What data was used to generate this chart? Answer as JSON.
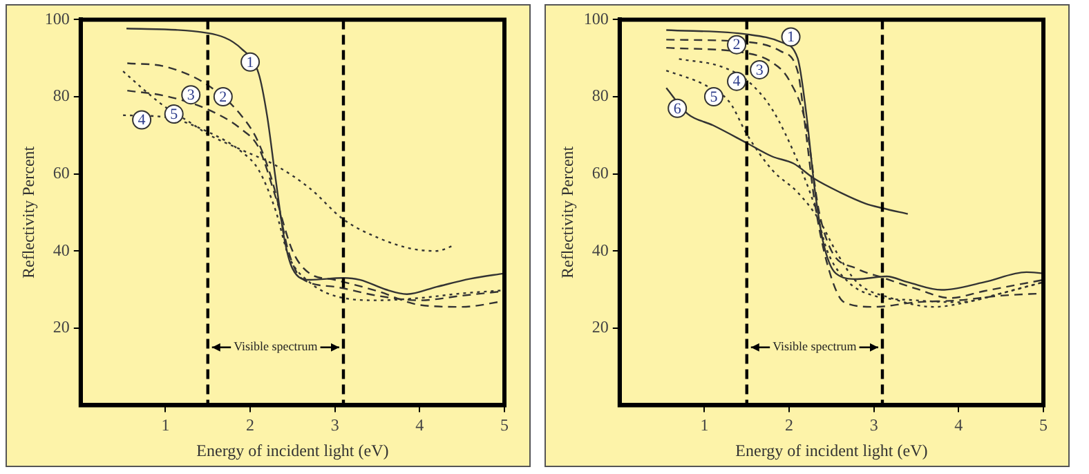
{
  "chart_data": [
    {
      "type": "line",
      "xlabel": "Energy of incident light (eV)",
      "ylabel": "Reflectivity Percent",
      "xlim": [
        0,
        5
      ],
      "ylim": [
        0,
        100
      ],
      "xticks": [
        1,
        2,
        3,
        4,
        5
      ],
      "yticks": [
        20,
        40,
        60,
        80,
        100
      ],
      "grid": false,
      "legend": false,
      "marker": "none",
      "ref_lines": [
        {
          "axis": "x",
          "value": 1.5,
          "color": "#000000",
          "line_style": "dashed"
        },
        {
          "axis": "x",
          "value": 3.1,
          "color": "#000000",
          "line_style": "dashed"
        }
      ],
      "annotations": [
        "Visible spectrum",
        {
          "text": "1",
          "x": 2.0,
          "y": 89
        },
        {
          "text": "2",
          "x": 1.68,
          "y": 80
        },
        {
          "text": "3",
          "x": 1.3,
          "y": 80.5
        },
        {
          "text": "5",
          "x": 1.1,
          "y": 75.5
        },
        {
          "text": "4",
          "x": 0.72,
          "y": 74
        }
      ],
      "series": [
        {
          "color": "#333333",
          "line_style": "solid",
          "x": [
            0.54,
            1.5,
            1.9,
            2.1,
            2.2,
            2.3,
            2.4,
            2.5,
            2.7,
            3.1,
            3.3,
            3.6,
            3.85,
            4.2,
            4.6,
            5
          ],
          "values": [
            97.7,
            96.5,
            92.4,
            86,
            75,
            58.7,
            43.5,
            35.4,
            32.5,
            33,
            32.5,
            30,
            28.8,
            30.7,
            32.8,
            34.2
          ]
        },
        {
          "color": "#333333",
          "line_style": "dashed",
          "x": [
            0.55,
            1,
            1.5,
            1.9,
            2.1,
            2.3,
            2.45,
            2.6,
            3,
            3.5,
            4,
            4.5,
            5
          ],
          "values": [
            88.7,
            87.8,
            83,
            75,
            68,
            55,
            40,
            33,
            30.7,
            28.4,
            27.2,
            28.4,
            29.6
          ]
        },
        {
          "color": "#333333",
          "line_style": "dashed",
          "x": [
            0.55,
            1,
            1.5,
            1.9,
            2.1,
            2.3,
            2.5,
            2.7,
            3,
            3.5,
            4,
            4.5,
            5
          ],
          "values": [
            81.6,
            80.2,
            76.7,
            71.5,
            66.8,
            54,
            40,
            34.2,
            32.5,
            29.6,
            26,
            25.5,
            27
          ]
        },
        {
          "color": "#333333",
          "line_style": "dotted",
          "x": [
            0.5,
            1,
            1.5,
            1.9,
            2.1,
            2.3,
            2.45,
            2.7,
            3.1,
            3.5,
            4,
            4.5,
            5
          ],
          "values": [
            75.2,
            74.7,
            70.9,
            65.7,
            61,
            50.5,
            38.9,
            31.9,
            27.8,
            27.2,
            27.8,
            29,
            29.8
          ]
        },
        {
          "color": "#333333",
          "line_style": "dotted",
          "x": [
            0.5,
            0.8,
            1,
            1.3,
            1.5,
            1.9,
            2.3,
            2.7,
            3.1,
            3.5,
            3.9,
            4.2,
            4.4
          ],
          "values": [
            86.6,
            80.8,
            77.3,
            73.2,
            70.3,
            66.2,
            62.2,
            56.3,
            48.2,
            43.5,
            40.6,
            40,
            41.4
          ]
        }
      ]
    },
    {
      "type": "line",
      "xlabel": "Energy of incident light (eV)",
      "ylabel": "Reflectivity Percent",
      "xlim": [
        0,
        5
      ],
      "ylim": [
        0,
        100
      ],
      "xticks": [
        1,
        2,
        3,
        4,
        5
      ],
      "yticks": [
        20,
        40,
        60,
        80,
        100
      ],
      "grid": false,
      "legend": false,
      "marker": "none",
      "ref_lines": [
        {
          "axis": "x",
          "value": 1.5,
          "color": "#000000",
          "line_style": "dashed"
        },
        {
          "axis": "x",
          "value": 3.1,
          "color": "#000000",
          "line_style": "dashed"
        }
      ],
      "annotations": [
        "Visible spectrum",
        {
          "text": "1",
          "x": 2.02,
          "y": 95.5
        },
        {
          "text": "2",
          "x": 1.38,
          "y": 93.5
        },
        {
          "text": "3",
          "x": 1.65,
          "y": 87
        },
        {
          "text": "4",
          "x": 1.38,
          "y": 84
        },
        {
          "text": "5",
          "x": 1.11,
          "y": 80
        },
        {
          "text": "6",
          "x": 0.68,
          "y": 77
        }
      ],
      "series": [
        {
          "color": "#333333",
          "line_style": "solid",
          "x": [
            0.55,
            1.5,
            1.9,
            2.1,
            2.2,
            2.3,
            2.4,
            2.55,
            2.8,
            3.15,
            3.4,
            3.8,
            4.3,
            4.8,
            5
          ],
          "values": [
            97.3,
            96.2,
            94.2,
            90,
            76,
            56.3,
            42.4,
            34.2,
            32.7,
            33.4,
            31.9,
            29.9,
            31.9,
            34.5,
            34.2
          ]
        },
        {
          "color": "#333333",
          "line_style": "dashed",
          "x": [
            0.55,
            1.5,
            1.9,
            2.1,
            2.2,
            2.3,
            2.45,
            2.65,
            3,
            3.5,
            4,
            4.5,
            5
          ],
          "values": [
            94.8,
            94.2,
            91.8,
            86.6,
            70.3,
            52.8,
            36.6,
            26.7,
            25.5,
            26.7,
            27.2,
            28.4,
            29
          ]
        },
        {
          "color": "#333333",
          "line_style": "dashed",
          "x": [
            0.55,
            1.5,
            1.8,
            2,
            2.2,
            2.35,
            2.5,
            2.8,
            3.1,
            3.5,
            3.9,
            4.3,
            5
          ],
          "values": [
            92.7,
            91.3,
            88.9,
            84.3,
            72.6,
            50.5,
            40,
            35.4,
            33.1,
            30.2,
            27.8,
            29.6,
            32.5
          ]
        },
        {
          "color": "#333333",
          "line_style": "dotted",
          "x": [
            0.7,
            1.2,
            1.5,
            1.8,
            2.1,
            2.3,
            2.45,
            2.7,
            3,
            3.5,
            4,
            4.5,
            5
          ],
          "values": [
            89.8,
            87.8,
            84.3,
            76.7,
            63.3,
            51.7,
            40,
            31.9,
            28.4,
            27.2,
            26.7,
            29,
            31.9
          ]
        },
        {
          "color": "#333333",
          "line_style": "dotted",
          "x": [
            0.55,
            1,
            1.3,
            1.5,
            1.8,
            2.1,
            2.35,
            2.55,
            2.8,
            3.2,
            3.7,
            4.2,
            4.6,
            5
          ],
          "values": [
            86.8,
            83.1,
            78.5,
            70.3,
            61,
            55.2,
            48.2,
            40,
            31.9,
            27.8,
            25.5,
            27.2,
            29.6,
            31.9
          ]
        },
        {
          "color": "#333333",
          "line_style": "solid",
          "x": [
            0.55,
            0.8,
            1.1,
            1.5,
            1.8,
            2.05,
            2.3,
            2.6,
            2.9,
            3.1,
            3.4
          ],
          "values": [
            82.3,
            75.6,
            72.6,
            68,
            64.5,
            62.7,
            58.7,
            55.2,
            52.3,
            51.1,
            49.6
          ]
        }
      ]
    }
  ]
}
